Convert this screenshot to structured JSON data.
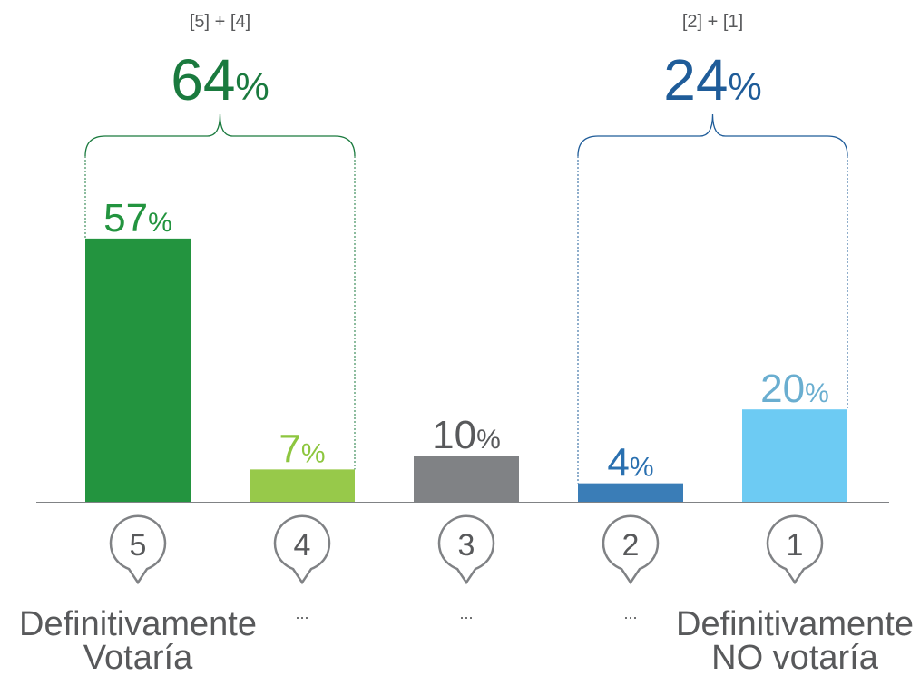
{
  "chart_data": {
    "type": "bar",
    "categories": [
      "5",
      "4",
      "3",
      "2",
      "1"
    ],
    "category_labels": [
      [
        "Definitivamente",
        "Votaría"
      ],
      [
        "..."
      ],
      [
        "..."
      ],
      [
        "..."
      ],
      [
        "Definitivamente",
        "NO votaría"
      ]
    ],
    "values": [
      57,
      7,
      10,
      4,
      20
    ],
    "value_labels": [
      "57%",
      "7%",
      "10%",
      "4%",
      "20%"
    ],
    "colors": [
      "#23943f",
      "#97c94a",
      "#808285",
      "#3a7db7",
      "#6dcbf3"
    ],
    "label_colors": [
      "#23943f",
      "#8dc63f",
      "#58595b",
      "#2a70b0",
      "#6aaed0"
    ],
    "groups": [
      {
        "formula": "[5] + [4]",
        "value": 64,
        "value_label": "64%",
        "color": "#1a7a3e"
      },
      {
        "formula": "[2] + [1]",
        "value": 24,
        "value_label": "24%",
        "color": "#1f5c99"
      }
    ]
  }
}
